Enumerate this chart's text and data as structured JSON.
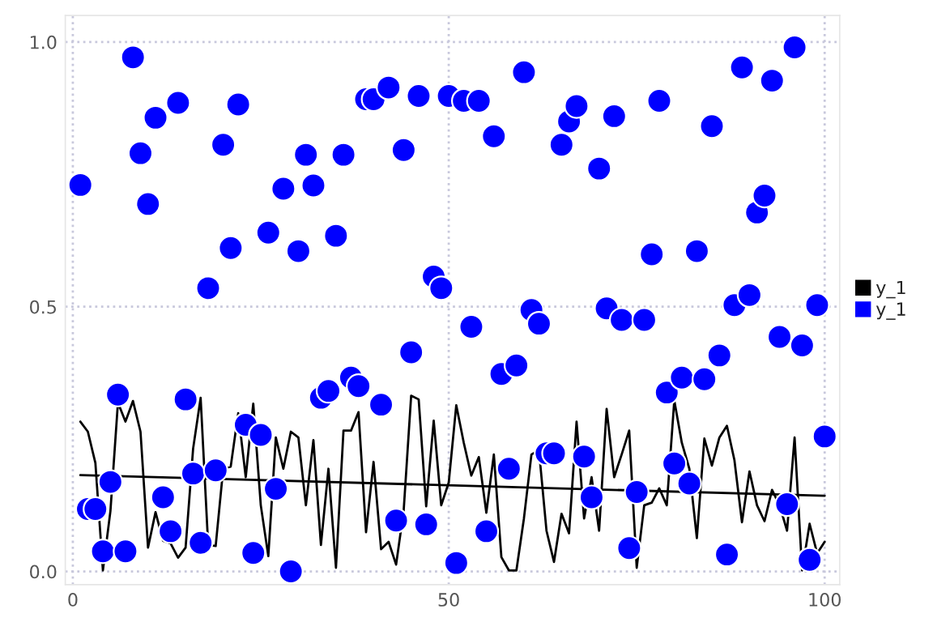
{
  "chart_data": {
    "type": "line",
    "xlim": [
      -1,
      102
    ],
    "ylim": [
      -0.025,
      1.05
    ],
    "xticks": [
      0,
      50,
      100
    ],
    "yticks": [
      {
        "value": 0,
        "label": "0.0"
      },
      {
        "value": 0.5,
        "label": "0.5"
      },
      {
        "value": 1,
        "label": "1.0"
      }
    ],
    "grid": true,
    "legend": "right",
    "line_style": "solid",
    "series": [
      {
        "name": "y_1",
        "color": "#000000",
        "marker": "none",
        "x": [
          1,
          2,
          3,
          4,
          5,
          6,
          7,
          8,
          9,
          10,
          11,
          12,
          13,
          14,
          15,
          16,
          17,
          18,
          19,
          20,
          21,
          22,
          23,
          24,
          25,
          26,
          27,
          28,
          29,
          30,
          31,
          32,
          33,
          34,
          35,
          36,
          37,
          38,
          39,
          40,
          41,
          42,
          43,
          44,
          45,
          46,
          47,
          48,
          49,
          50,
          51,
          52,
          53,
          54,
          55,
          56,
          57,
          58,
          59,
          60,
          61,
          62,
          63,
          64,
          65,
          66,
          67,
          68,
          69,
          70,
          71,
          72,
          73,
          74,
          75,
          76,
          77,
          78,
          79,
          80,
          81,
          82,
          83,
          84,
          85,
          86,
          87,
          88,
          89,
          90,
          91,
          92,
          93,
          94,
          95,
          96,
          97,
          98,
          99,
          100
        ],
        "values": [
          0.283,
          0.264,
          0.205,
          0.002,
          0.114,
          0.319,
          0.283,
          0.322,
          0.264,
          0.045,
          0.112,
          0.058,
          0.053,
          0.026,
          0.045,
          0.232,
          0.328,
          0.05,
          0.048,
          0.194,
          0.198,
          0.299,
          0.178,
          0.317,
          0.125,
          0.029,
          0.253,
          0.194,
          0.264,
          0.253,
          0.125,
          0.248,
          0.05,
          0.194,
          0.007,
          0.266,
          0.266,
          0.301,
          0.074,
          0.207,
          0.042,
          0.056,
          0.013,
          0.114,
          0.332,
          0.325,
          0.123,
          0.285,
          0.125,
          0.168,
          0.314,
          0.243,
          0.181,
          0.216,
          0.111,
          0.221,
          0.027,
          0.002,
          0.002,
          0.1,
          0.221,
          0.229,
          0.077,
          0.018,
          0.109,
          0.072,
          0.283,
          0.1,
          0.178,
          0.077,
          0.307,
          0.178,
          0.221,
          0.266,
          0.007,
          0.125,
          0.13,
          0.157,
          0.125,
          0.323,
          0.243,
          0.194,
          0.063,
          0.251,
          0.2,
          0.253,
          0.275,
          0.21,
          0.093,
          0.189,
          0.125,
          0.095,
          0.154,
          0.125,
          0.077,
          0.253,
          0.002,
          0.09,
          0.034,
          0.056
        ]
      },
      {
        "name": "y_1",
        "type": "scatter",
        "color": "#0000ff",
        "marker": "circle",
        "x": [
          1,
          2,
          3,
          4,
          5,
          6,
          7,
          8,
          9,
          10,
          11,
          12,
          13,
          14,
          15,
          16,
          17,
          18,
          19,
          20,
          21,
          22,
          23,
          24,
          25,
          26,
          27,
          28,
          29,
          30,
          31,
          32,
          33,
          34,
          35,
          36,
          37,
          38,
          39,
          40,
          41,
          42,
          43,
          44,
          45,
          46,
          47,
          48,
          49,
          50,
          51,
          52,
          53,
          54,
          55,
          56,
          57,
          58,
          59,
          60,
          61,
          62,
          63,
          64,
          65,
          66,
          67,
          68,
          69,
          70,
          71,
          72,
          73,
          74,
          75,
          76,
          77,
          78,
          79,
          80,
          81,
          82,
          83,
          84,
          85,
          86,
          87,
          88,
          89,
          90,
          91,
          92,
          93,
          94,
          95,
          96,
          97,
          98,
          99,
          100
        ],
        "values": [
          0.73,
          0.118,
          0.118,
          0.038,
          0.169,
          0.334,
          0.038,
          0.971,
          0.79,
          0.694,
          0.857,
          0.14,
          0.076,
          0.885,
          0.325,
          0.185,
          0.054,
          0.535,
          0.191,
          0.806,
          0.611,
          0.882,
          0.277,
          0.035,
          0.258,
          0.64,
          0.156,
          0.723,
          0.0,
          0.605,
          0.787,
          0.729,
          0.328,
          0.341,
          0.634,
          0.787,
          0.366,
          0.35,
          0.892,
          0.892,
          0.315,
          0.914,
          0.096,
          0.796,
          0.414,
          0.898,
          0.089,
          0.557,
          0.535,
          0.898,
          0.016,
          0.889,
          0.462,
          0.889,
          0.076,
          0.822,
          0.373,
          0.194,
          0.389,
          0.943,
          0.494,
          0.468,
          0.223,
          0.223,
          0.806,
          0.85,
          0.879,
          0.217,
          0.14,
          0.761,
          0.497,
          0.86,
          0.475,
          0.044,
          0.15,
          0.475,
          0.599,
          0.889,
          0.338,
          0.204,
          0.366,
          0.166,
          0.605,
          0.363,
          0.841,
          0.408,
          0.032,
          0.503,
          0.952,
          0.522,
          0.678,
          0.71,
          0.927,
          0.443,
          0.127,
          0.99,
          0.427,
          0.022,
          0.503,
          0.255
        ]
      },
      {
        "color": "#000000",
        "marker": "none",
        "x": [
          1,
          100
        ],
        "values": [
          0.182,
          0.143
        ]
      }
    ]
  }
}
